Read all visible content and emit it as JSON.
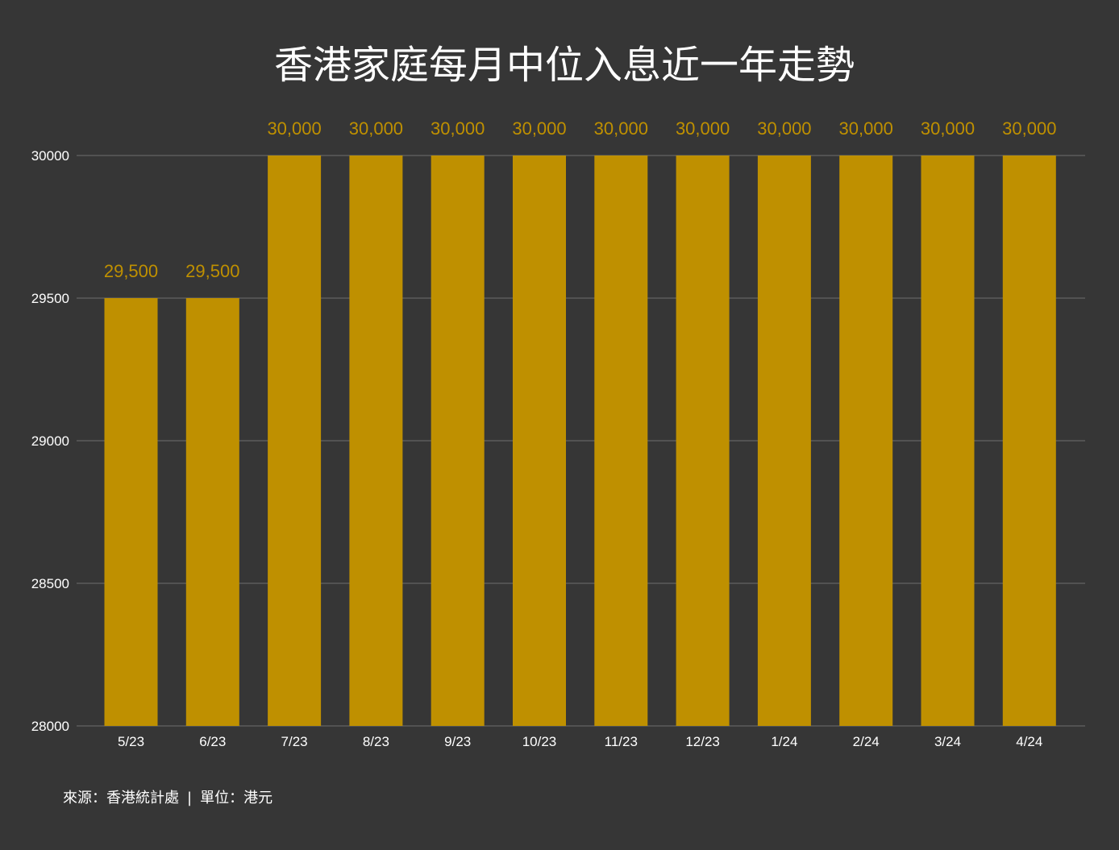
{
  "chart_data": {
    "type": "bar",
    "title": "香港家庭每月中位入息近一年走勢",
    "categories": [
      "5/23",
      "6/23",
      "7/23",
      "8/23",
      "9/23",
      "10/23",
      "11/23",
      "12/23",
      "1/24",
      "2/24",
      "3/24",
      "4/24"
    ],
    "series": [
      {
        "values": [
          29500,
          29500,
          30000,
          30000,
          30000,
          30000,
          30000,
          30000,
          30000,
          30000,
          30000,
          30000
        ]
      }
    ],
    "data_labels": [
      "29,500",
      "29,500",
      "30,000",
      "30,000",
      "30,000",
      "30,000",
      "30,000",
      "30,000",
      "30,000",
      "30,000",
      "30,000",
      "30,000"
    ],
    "ylim": [
      28000,
      30000
    ],
    "yticks": [
      28000,
      28500,
      29000,
      29500,
      30000
    ],
    "ytick_labels": [
      "28000",
      "28500",
      "29000",
      "29500",
      "30000"
    ],
    "grid": true,
    "legend": "none",
    "colors": {
      "bar": "#bf9000",
      "data_label": "#bf9000",
      "gridline": "#5c5c5c",
      "background": "#363636",
      "text": "#ffffff"
    }
  },
  "footnote": {
    "source": "來源：香港統計處",
    "separator": "|",
    "unit": "單位：港元"
  }
}
